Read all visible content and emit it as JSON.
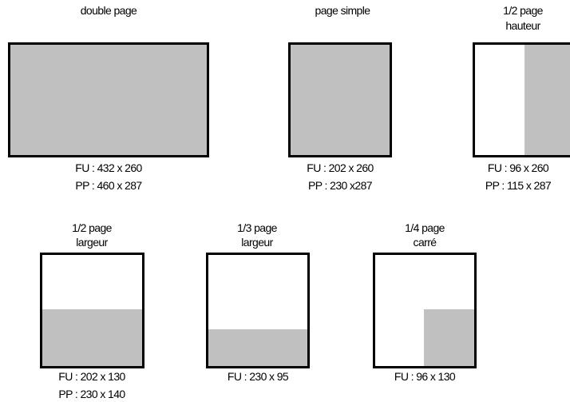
{
  "colors": {
    "fill": "#c0c0c0",
    "border": "#000000",
    "background": "#ffffff"
  },
  "formats": [
    {
      "title": "double page",
      "fu": "FU : 432 x 260",
      "pp": "PP : 460 x 287"
    },
    {
      "title": "page simple",
      "fu": "FU : 202 x 260",
      "pp": "PP : 230 x287"
    },
    {
      "title_line1": "1/2 page",
      "title_line2": "hauteur",
      "fu": "FU : 96 x 260",
      "pp": "PP : 115 x 287"
    },
    {
      "title_line1": "1/2 page",
      "title_line2": "largeur",
      "fu": "FU : 202 x 130",
      "pp": "PP : 230 x 140"
    },
    {
      "title_line1": "1/3 page",
      "title_line2": "largeur",
      "fu": "FU : 230 x 95"
    },
    {
      "title_line1": "1/4 page",
      "title_line2": "carré",
      "fu": "FU : 96 x 130"
    }
  ]
}
